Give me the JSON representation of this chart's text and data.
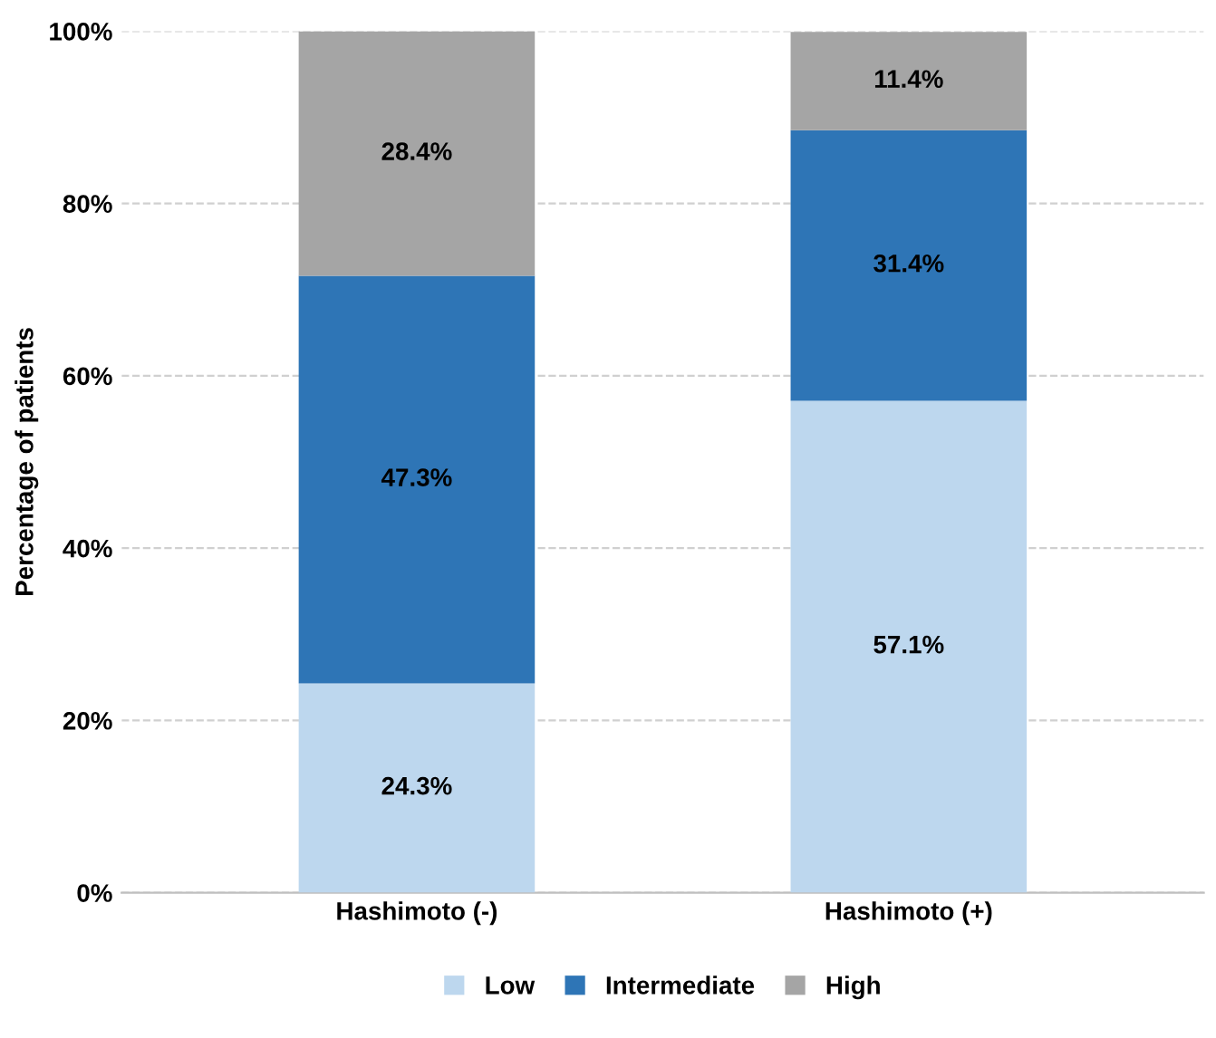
{
  "chart_data": {
    "type": "bar",
    "stacked": true,
    "ylabel": "Percentage of patients",
    "categories": [
      "Hashimoto (-)",
      "Hashimoto (+)"
    ],
    "series": [
      {
        "name": "Low",
        "color": "#bdd7ee",
        "values": [
          24.3,
          57.1
        ]
      },
      {
        "name": "Intermediate",
        "color": "#2e75b6",
        "values": [
          47.3,
          31.4
        ]
      },
      {
        "name": "High",
        "color": "#a5a5a5",
        "values": [
          28.4,
          11.4
        ]
      }
    ],
    "value_labels": [
      [
        "24.3%",
        "57.1%"
      ],
      [
        "47.3%",
        "31.4%"
      ],
      [
        "28.4%",
        "11.4%"
      ]
    ],
    "ylim": [
      0,
      100
    ],
    "yticks": [
      {
        "value": 0,
        "label": "0%"
      },
      {
        "value": 20,
        "label": "20%"
      },
      {
        "value": 40,
        "label": "40%"
      },
      {
        "value": 60,
        "label": "60%"
      },
      {
        "value": 80,
        "label": "80%"
      },
      {
        "value": 100,
        "label": "100%"
      }
    ],
    "grid": "y",
    "legend": "bottom"
  }
}
